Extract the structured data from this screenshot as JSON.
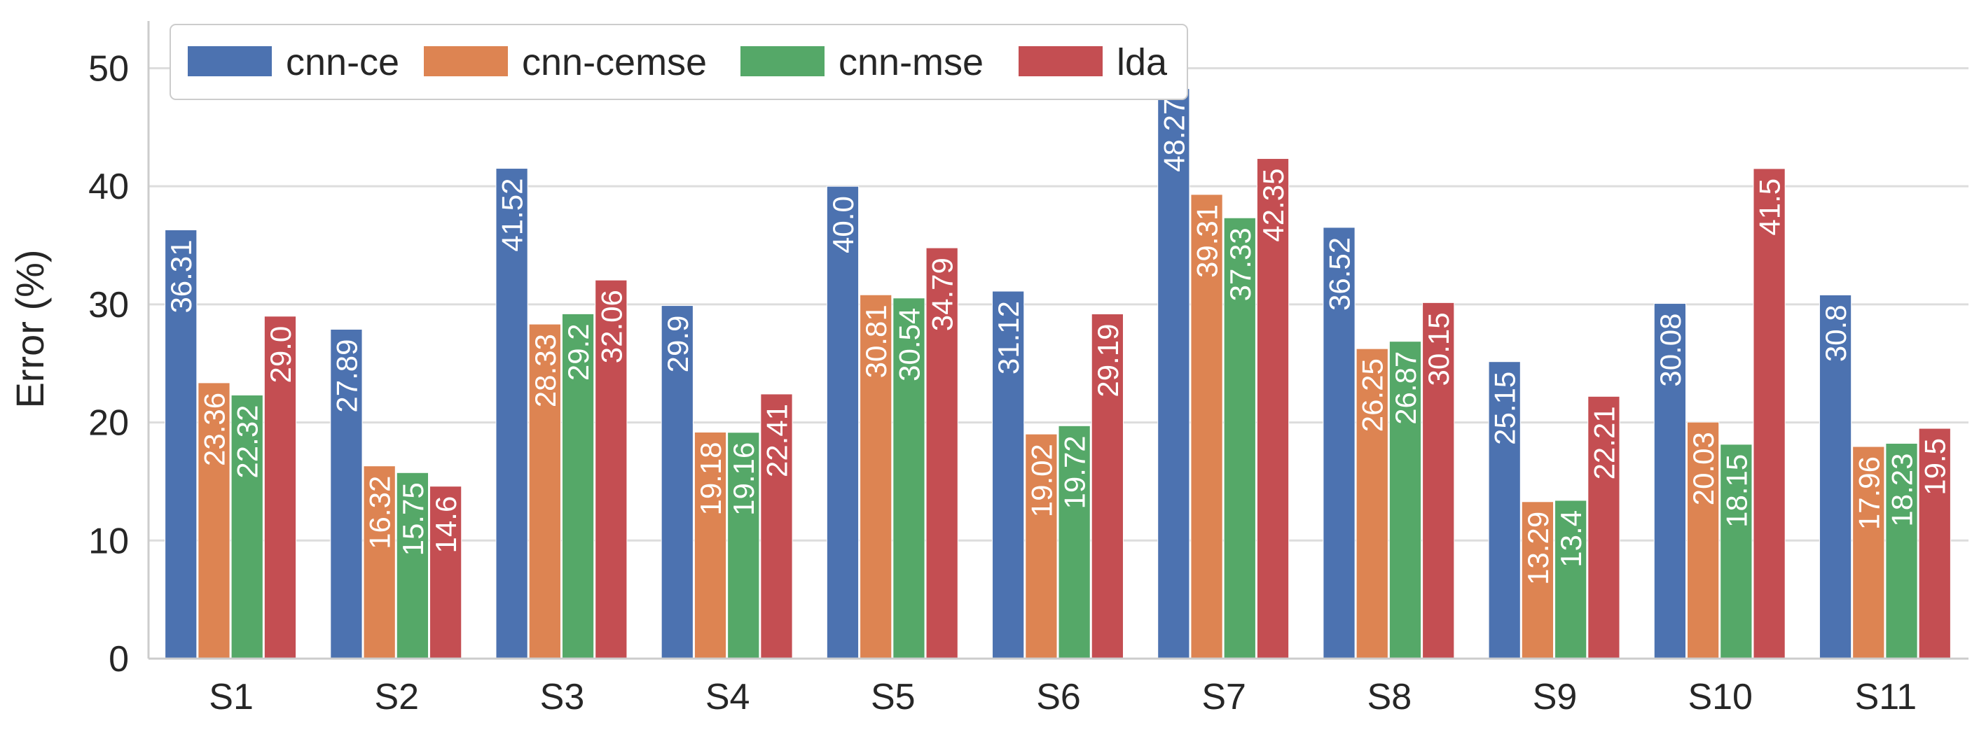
{
  "chart_data": {
    "type": "bar",
    "title": "",
    "xlabel": "",
    "ylabel": "Error (%)",
    "ylim": [
      0,
      54
    ],
    "yticks": [
      0,
      10,
      20,
      30,
      40,
      50
    ],
    "ytick_labels": [
      "0",
      "10",
      "20",
      "30",
      "40",
      "50"
    ],
    "grid": "horizontal",
    "legend_position": "top-left",
    "categories": [
      "S1",
      "S2",
      "S3",
      "S4",
      "S5",
      "S6",
      "S7",
      "S8",
      "S9",
      "S10",
      "S11"
    ],
    "series": [
      {
        "name": "cnn-ce",
        "color": "#4c72b0",
        "values": [
          36.31,
          27.89,
          41.52,
          29.9,
          40.0,
          31.12,
          48.27,
          36.52,
          25.15,
          30.08,
          30.8
        ],
        "labels": [
          "36.31",
          "27.89",
          "41.52",
          "29.9",
          "40.0",
          "31.12",
          "48.27",
          "36.52",
          "25.15",
          "30.08",
          "30.8"
        ]
      },
      {
        "name": "cnn-cemse",
        "color": "#dd8452",
        "values": [
          23.36,
          16.32,
          28.33,
          19.18,
          30.81,
          19.02,
          39.31,
          26.25,
          13.29,
          20.03,
          17.96
        ],
        "labels": [
          "23.36",
          "16.32",
          "28.33",
          "19.18",
          "30.81",
          "19.02",
          "39.31",
          "26.25",
          "13.29",
          "20.03",
          "17.96"
        ]
      },
      {
        "name": "cnn-mse",
        "color": "#55a868",
        "values": [
          22.32,
          15.75,
          29.2,
          19.16,
          30.54,
          19.72,
          37.33,
          26.87,
          13.4,
          18.15,
          18.23
        ],
        "labels": [
          "22.32",
          "15.75",
          "29.2",
          "19.16",
          "30.54",
          "19.72",
          "37.33",
          "26.87",
          "13.4",
          "18.15",
          "18.23"
        ]
      },
      {
        "name": "lda",
        "color": "#c44e52",
        "values": [
          29.0,
          14.6,
          32.06,
          22.41,
          34.79,
          29.19,
          42.35,
          30.15,
          22.21,
          41.5,
          19.5
        ],
        "labels": [
          "29.0",
          "14.6",
          "32.06",
          "22.41",
          "34.79",
          "29.19",
          "42.35",
          "30.15",
          "22.21",
          "41.5",
          "19.5"
        ]
      }
    ]
  }
}
